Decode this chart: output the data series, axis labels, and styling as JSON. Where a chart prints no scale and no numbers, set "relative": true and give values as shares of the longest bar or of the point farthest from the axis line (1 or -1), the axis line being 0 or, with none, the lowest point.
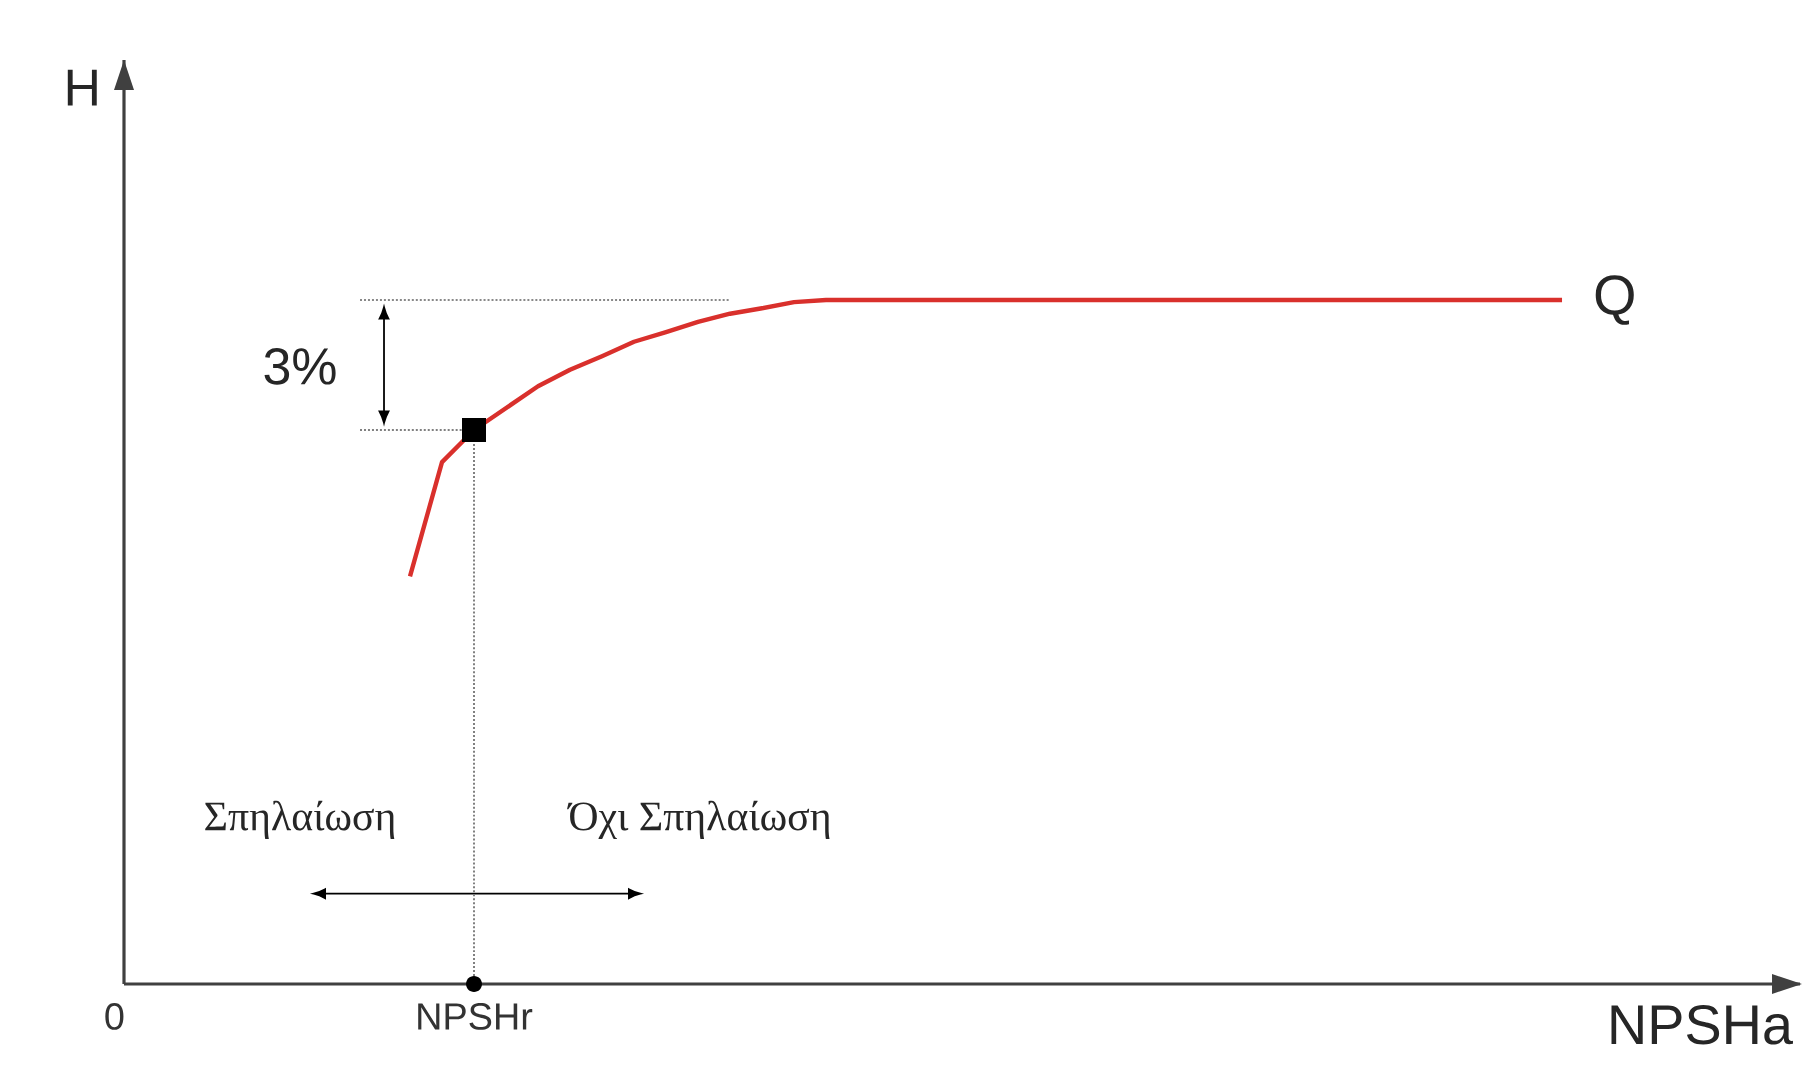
{
  "chart_data": {
    "type": "line",
    "relative": true,
    "xlabel": "NPSHa",
    "categories": [
      null,
      null,
      null,
      null,
      null,
      null,
      null,
      null,
      null,
      null,
      null,
      null,
      null,
      null,
      null,
      null,
      null,
      null,
      null,
      null,
      null,
      null,
      null,
      null,
      null,
      null,
      null,
      null,
      null,
      null,
      null,
      null,
      null,
      null,
      null,
      null,
      null
    ],
    "series": [
      {
        "name": "Q",
        "color": "#d9302c",
        "values": [
          0.596,
          0.763,
          0.81,
          0.842,
          0.874,
          0.898,
          0.918,
          0.939,
          0.953,
          0.968,
          0.98,
          0.988,
          0.997,
          1,
          1,
          1,
          1,
          1,
          1,
          1,
          1,
          1,
          1,
          1,
          1,
          1,
          1,
          1,
          1,
          1,
          1,
          1,
          1,
          1,
          1,
          1,
          1
        ]
      }
    ],
    "ref_lines": [
      {
        "axis": "y",
        "value": 1,
        "line_style": "dotted",
        "color": "#888888"
      }
    ],
    "annotations": [
      "3%",
      "Σπηλαίωση",
      "Όχι Σπηλαίωση",
      "0",
      "H",
      "NPSHr"
    ]
  }
}
